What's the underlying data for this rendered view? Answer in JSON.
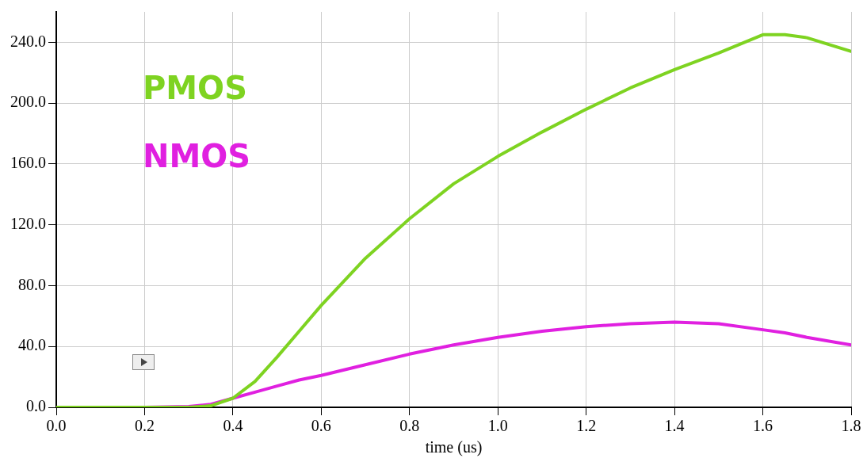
{
  "chart_data": {
    "type": "line",
    "xlabel": "time (us)",
    "legend": "top left",
    "grid": true,
    "marker": "none",
    "line_style": "solid",
    "xlim": [
      0,
      1.8
    ],
    "xticks": [
      {
        "value": 0,
        "label": "0.0"
      },
      {
        "value": 0.2,
        "label": "0.2"
      },
      {
        "value": 0.4,
        "label": "0.4"
      },
      {
        "value": 0.6,
        "label": "0.6"
      },
      {
        "value": 0.8,
        "label": "0.8"
      },
      {
        "value": 1.0,
        "label": "1.0"
      },
      {
        "value": 1.2,
        "label": "1.2"
      },
      {
        "value": 1.4,
        "label": "1.4"
      },
      {
        "value": 1.6,
        "label": "1.6"
      },
      {
        "value": 1.8,
        "label": "1.8"
      }
    ],
    "ylim": [
      0,
      260
    ],
    "yticks": [
      {
        "value": 0,
        "label": "0.0"
      },
      {
        "value": 40,
        "label": "40.0"
      },
      {
        "value": 80,
        "label": "80.0"
      },
      {
        "value": 120,
        "label": "120.0"
      },
      {
        "value": 160,
        "label": "160.0"
      },
      {
        "value": 200,
        "label": "200.0"
      },
      {
        "value": 240,
        "label": "240.0"
      }
    ],
    "x": [
      0,
      0.1,
      0.2,
      0.3,
      0.35,
      0.4,
      0.45,
      0.5,
      0.55,
      0.6,
      0.7,
      0.8,
      0.9,
      1.0,
      1.1,
      1.2,
      1.3,
      1.4,
      1.5,
      1.6,
      1.65,
      1.7,
      1.8
    ],
    "series": [
      {
        "name": "PMOS",
        "color": "#7ed321",
        "values": [
          0,
          0,
          0,
          0,
          1,
          6,
          17,
          33,
          50,
          67,
          98,
          124,
          147,
          165,
          181,
          196,
          210,
          222,
          233,
          245,
          245,
          243,
          234
        ]
      },
      {
        "name": "NMOS",
        "color": "#e020e0",
        "values": [
          0,
          0,
          0,
          0.5,
          2,
          6,
          10,
          14,
          18,
          21,
          28,
          35,
          41,
          46,
          50,
          53,
          55,
          56,
          55,
          51,
          49,
          46,
          41
        ]
      }
    ]
  }
}
